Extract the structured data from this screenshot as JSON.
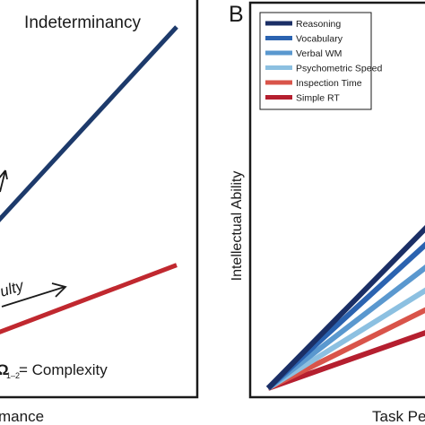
{
  "colors": {
    "frame": "#1a1a1a",
    "blue_line": "#1d3a6b",
    "red_line": "#c0282f"
  },
  "panel_a": {
    "title": "Indeterminancy",
    "arrow_label": "ulty",
    "complexity_prefix": "₂",
    "complexity_sub": "1–2",
    "complexity_label": "= Complexity",
    "xlabel": "mance"
  },
  "panel_b": {
    "letter": "B",
    "ylabel": "Intellectual Ability",
    "xlabel": "Task Pe"
  },
  "chart_data": [
    {
      "type": "line",
      "panel": "A",
      "title": "Indeterminancy",
      "xlabel": "mance",
      "ylabel": "",
      "x": [
        0,
        1
      ],
      "series": [
        {
          "values": [
            0.12,
            1.0
          ],
          "color": "#1d3a6b"
        },
        {
          "values": [
            0.05,
            0.33
          ],
          "color": "#c0282f"
        }
      ]
    },
    {
      "type": "line",
      "panel": "B",
      "xlabel": "Task Pe",
      "ylabel": "Intellectual Ability",
      "legend_position": "top-left",
      "x": [
        0,
        1
      ],
      "series": [
        {
          "name": "Reasoning",
          "values": [
            0,
            0.98
          ],
          "color": "#1b2f66"
        },
        {
          "name": "Vocabulary",
          "values": [
            0,
            0.88
          ],
          "color": "#2b63b0"
        },
        {
          "name": "Verbal WM",
          "values": [
            0,
            0.74
          ],
          "color": "#5a98cf"
        },
        {
          "name": "Psychometric Speed",
          "values": [
            0,
            0.6
          ],
          "color": "#8cc0e1"
        },
        {
          "name": "Inspection Time",
          "values": [
            0,
            0.48
          ],
          "color": "#d9544a"
        },
        {
          "name": "Simple RT",
          "values": [
            0,
            0.34
          ],
          "color": "#b51f2f"
        }
      ]
    }
  ]
}
